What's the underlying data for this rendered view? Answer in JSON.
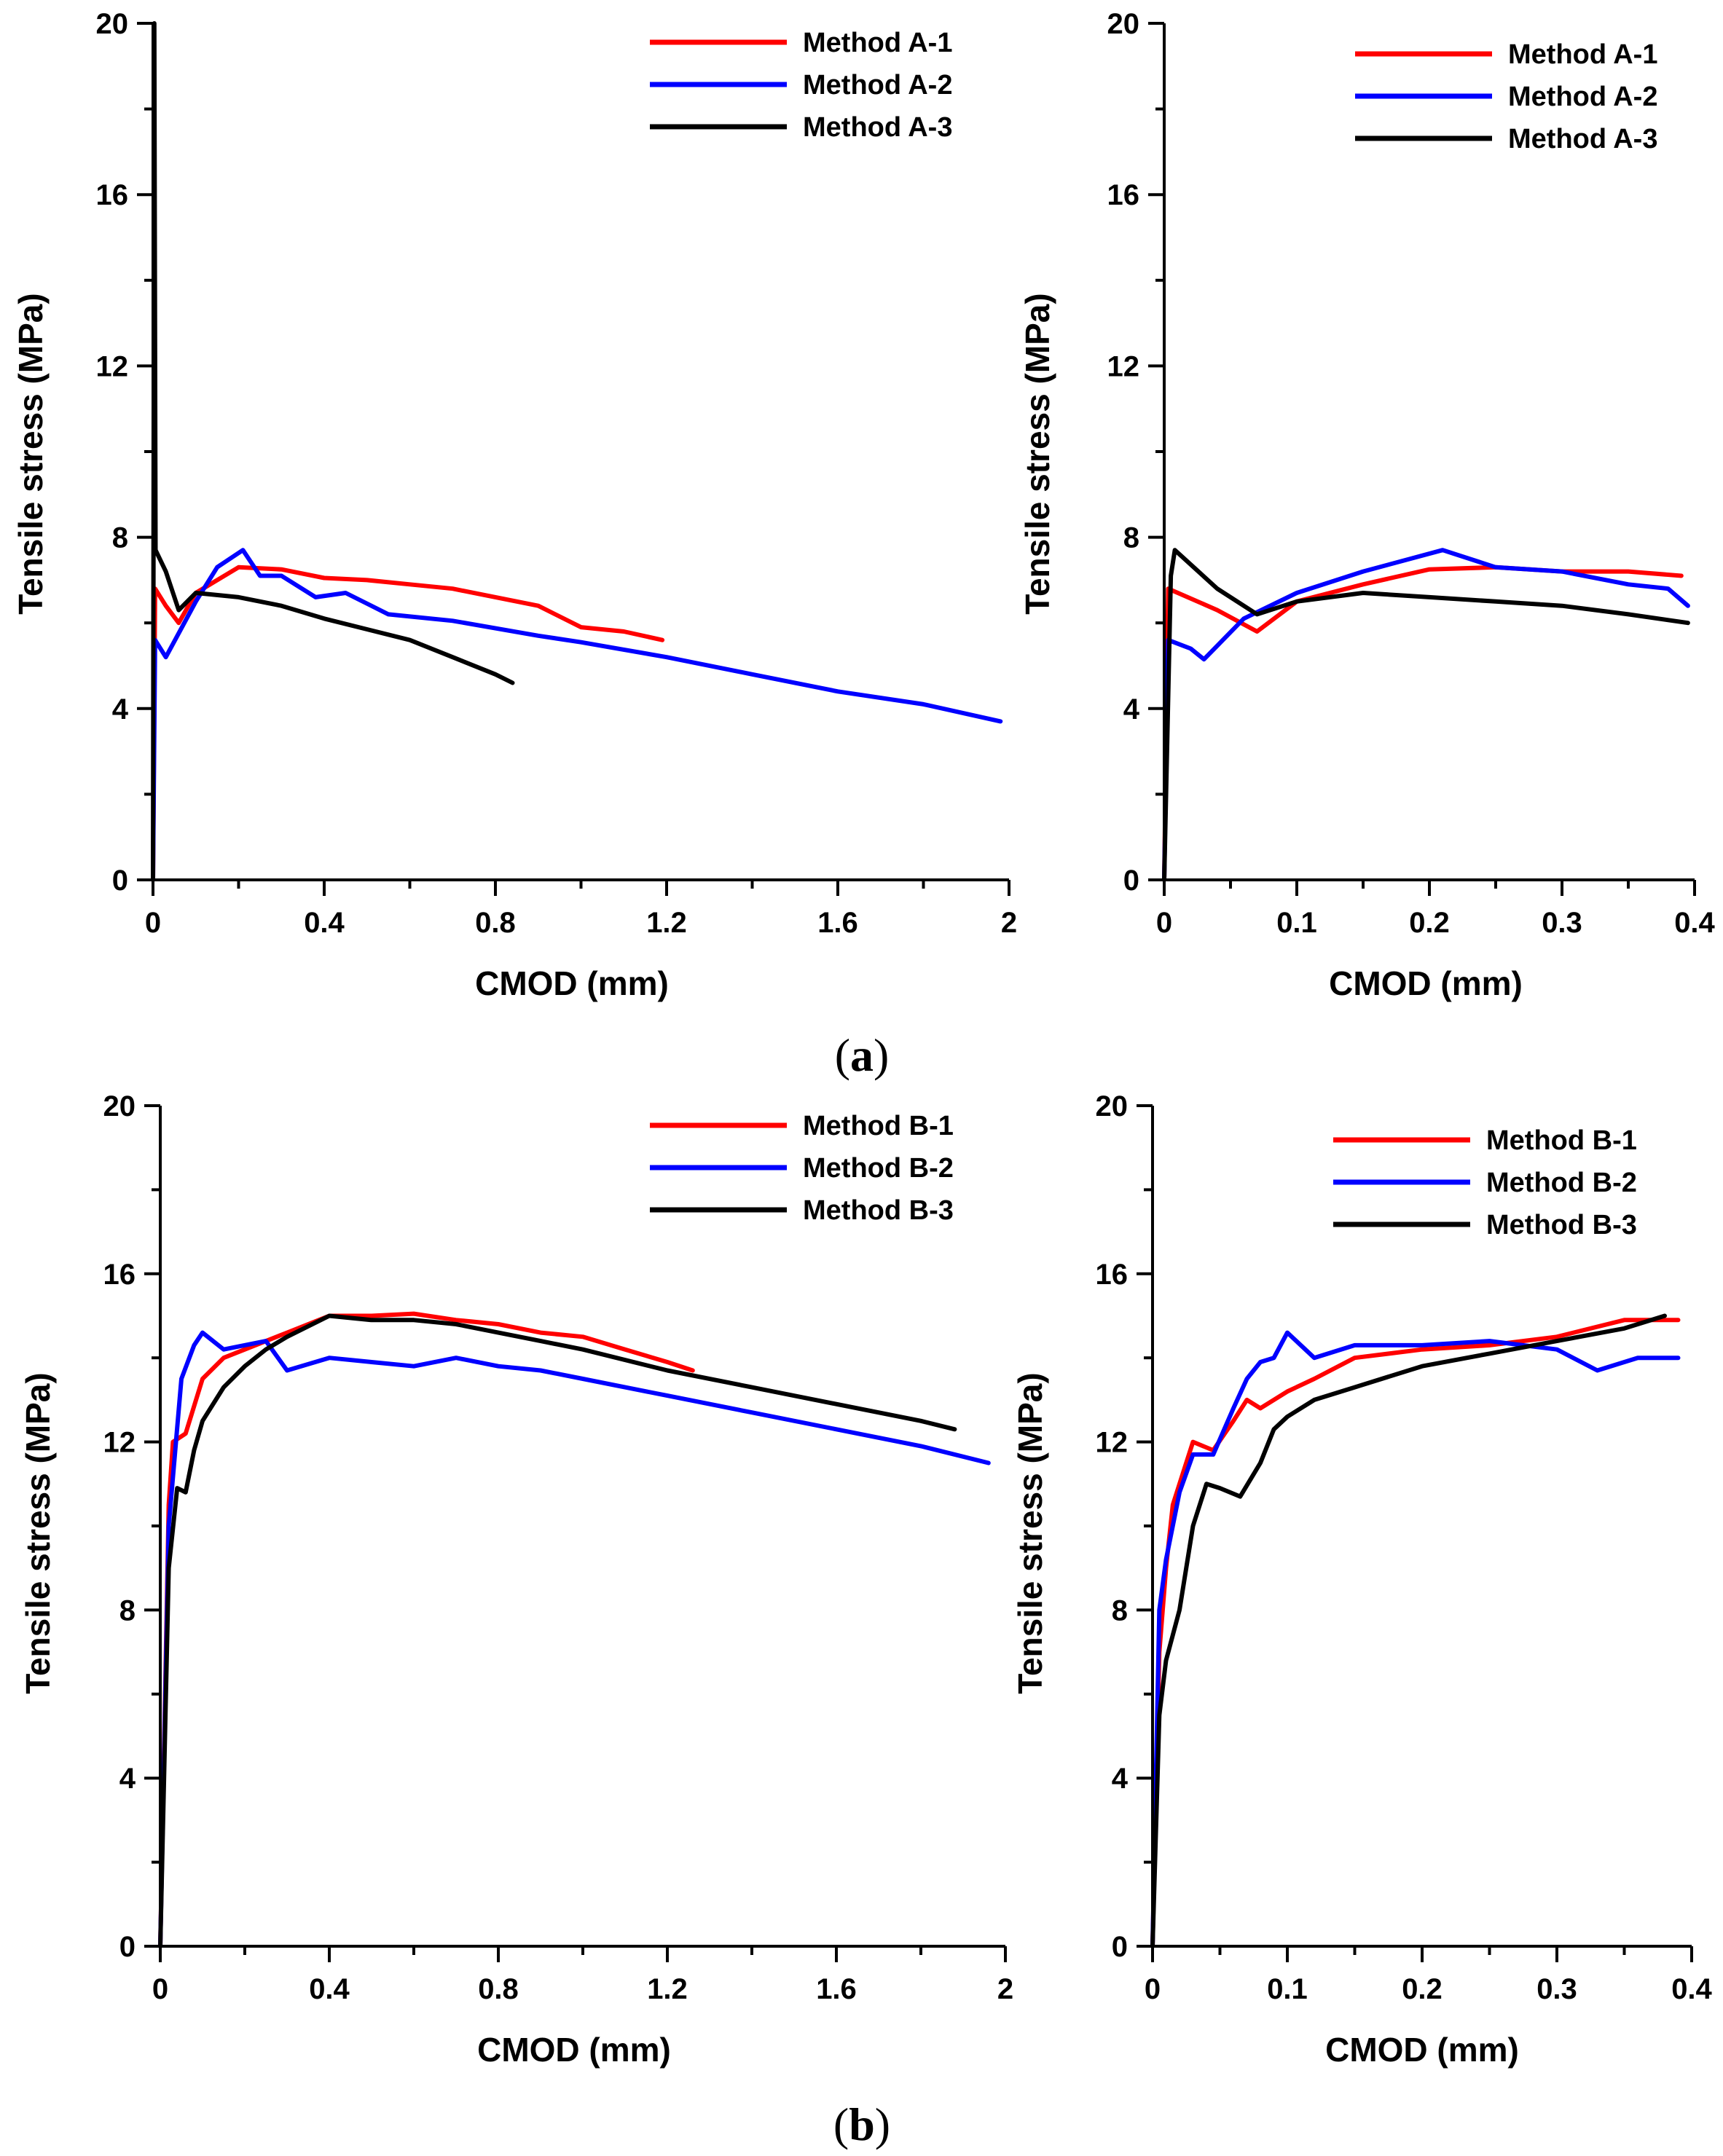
{
  "figure": {
    "panel_labels": [
      {
        "open": "(",
        "letter": "a",
        "close": ")"
      },
      {
        "open": "(",
        "letter": "b",
        "close": ")"
      }
    ]
  },
  "chart_data": [
    {
      "type": "line",
      "title": "",
      "xlabel": "CMOD (mm)",
      "ylabel": "Tensile stress (MPa)",
      "xlim": [
        0,
        2
      ],
      "ylim": [
        0,
        20
      ],
      "xticks": [
        0,
        0.4,
        0.8,
        1.2,
        1.6,
        2
      ],
      "xtick_labels": [
        "0",
        "0.4",
        "0.8",
        "1.2",
        "1.6",
        "2"
      ],
      "yticks": [
        0,
        4,
        8,
        12,
        16,
        20
      ],
      "ytick_labels": [
        "0",
        "4",
        "8",
        "12",
        "16",
        "20"
      ],
      "legend_position": "top-right",
      "series": [
        {
          "name": "Method A-1",
          "color": "#ff0000",
          "points": [
            [
              0,
              0
            ],
            [
              0.005,
              6.8
            ],
            [
              0.03,
              6.4
            ],
            [
              0.06,
              6.0
            ],
            [
              0.1,
              6.7
            ],
            [
              0.2,
              7.3
            ],
            [
              0.3,
              7.25
            ],
            [
              0.4,
              7.05
            ],
            [
              0.5,
              7.0
            ],
            [
              0.6,
              6.9
            ],
            [
              0.7,
              6.8
            ],
            [
              0.8,
              6.6
            ],
            [
              0.9,
              6.4
            ],
            [
              1.0,
              5.9
            ],
            [
              1.1,
              5.8
            ],
            [
              1.19,
              5.6
            ]
          ]
        },
        {
          "name": "Method A-2",
          "color": "#0000ff",
          "points": [
            [
              0,
              0
            ],
            [
              0.005,
              5.6
            ],
            [
              0.03,
              5.2
            ],
            [
              0.1,
              6.5
            ],
            [
              0.15,
              7.3
            ],
            [
              0.21,
              7.7
            ],
            [
              0.25,
              7.1
            ],
            [
              0.3,
              7.1
            ],
            [
              0.38,
              6.6
            ],
            [
              0.45,
              6.7
            ],
            [
              0.55,
              6.2
            ],
            [
              0.7,
              6.05
            ],
            [
              0.9,
              5.7
            ],
            [
              1.0,
              5.55
            ],
            [
              1.2,
              5.2
            ],
            [
              1.4,
              4.8
            ],
            [
              1.6,
              4.4
            ],
            [
              1.8,
              4.1
            ],
            [
              1.98,
              3.7
            ]
          ]
        },
        {
          "name": "Method A-3",
          "color": "#000000",
          "points": [
            [
              0,
              0
            ],
            [
              0.003,
              20
            ],
            [
              0.006,
              7.7
            ],
            [
              0.03,
              7.2
            ],
            [
              0.06,
              6.3
            ],
            [
              0.1,
              6.7
            ],
            [
              0.2,
              6.6
            ],
            [
              0.3,
              6.4
            ],
            [
              0.4,
              6.1
            ],
            [
              0.5,
              5.85
            ],
            [
              0.6,
              5.6
            ],
            [
              0.7,
              5.2
            ],
            [
              0.8,
              4.8
            ],
            [
              0.84,
              4.6
            ]
          ]
        }
      ]
    },
    {
      "type": "line",
      "title": "",
      "xlabel": "CMOD (mm)",
      "ylabel": "Tensile stress (MPa)",
      "xlim": [
        0,
        0.4
      ],
      "ylim": [
        0,
        20
      ],
      "xticks": [
        0,
        0.1,
        0.2,
        0.3,
        0.4
      ],
      "xtick_labels": [
        "0",
        "0.1",
        "0.2",
        "0.3",
        "0.4"
      ],
      "yticks": [
        0,
        4,
        8,
        12,
        16,
        20
      ],
      "ytick_labels": [
        "0",
        "4",
        "8",
        "12",
        "16",
        "20"
      ],
      "legend_position": "top-right",
      "series": [
        {
          "name": "Method A-1",
          "color": "#ff0000",
          "points": [
            [
              0,
              0
            ],
            [
              0.003,
              6.8
            ],
            [
              0.04,
              6.3
            ],
            [
              0.07,
              5.8
            ],
            [
              0.1,
              6.5
            ],
            [
              0.15,
              6.9
            ],
            [
              0.2,
              7.25
            ],
            [
              0.25,
              7.3
            ],
            [
              0.3,
              7.2
            ],
            [
              0.35,
              7.2
            ],
            [
              0.39,
              7.1
            ]
          ]
        },
        {
          "name": "Method A-2",
          "color": "#0000ff",
          "points": [
            [
              0,
              0
            ],
            [
              0.003,
              5.6
            ],
            [
              0.02,
              5.4
            ],
            [
              0.03,
              5.15
            ],
            [
              0.06,
              6.1
            ],
            [
              0.1,
              6.7
            ],
            [
              0.15,
              7.2
            ],
            [
              0.21,
              7.7
            ],
            [
              0.25,
              7.3
            ],
            [
              0.3,
              7.2
            ],
            [
              0.35,
              6.9
            ],
            [
              0.38,
              6.8
            ],
            [
              0.395,
              6.4
            ]
          ]
        },
        {
          "name": "Method A-3",
          "color": "#000000",
          "points": [
            [
              0,
              0
            ],
            [
              0.005,
              7.1
            ],
            [
              0.008,
              7.7
            ],
            [
              0.04,
              6.8
            ],
            [
              0.07,
              6.2
            ],
            [
              0.1,
              6.5
            ],
            [
              0.15,
              6.7
            ],
            [
              0.2,
              6.6
            ],
            [
              0.25,
              6.5
            ],
            [
              0.3,
              6.4
            ],
            [
              0.35,
              6.2
            ],
            [
              0.395,
              6.0
            ]
          ]
        }
      ]
    },
    {
      "type": "line",
      "title": "",
      "xlabel": "CMOD (mm)",
      "ylabel": "Tensile stress (MPa)",
      "xlim": [
        0,
        2
      ],
      "ylim": [
        0,
        20
      ],
      "xticks": [
        0,
        0.4,
        0.8,
        1.2,
        1.6,
        2
      ],
      "xtick_labels": [
        "0",
        "0.4",
        "0.8",
        "1.2",
        "1.6",
        "2"
      ],
      "yticks": [
        0,
        4,
        8,
        12,
        16,
        20
      ],
      "ytick_labels": [
        "0",
        "4",
        "8",
        "12",
        "16",
        "20"
      ],
      "legend_position": "top-right",
      "series": [
        {
          "name": "Method B-1",
          "color": "#ff0000",
          "points": [
            [
              0,
              0
            ],
            [
              0.02,
              10.5
            ],
            [
              0.03,
              12.0
            ],
            [
              0.06,
              12.2
            ],
            [
              0.1,
              13.5
            ],
            [
              0.15,
              14.0
            ],
            [
              0.2,
              14.2
            ],
            [
              0.3,
              14.6
            ],
            [
              0.4,
              15.0
            ],
            [
              0.5,
              15.0
            ],
            [
              0.6,
              15.05
            ],
            [
              0.7,
              14.9
            ],
            [
              0.8,
              14.8
            ],
            [
              0.9,
              14.6
            ],
            [
              1.0,
              14.5
            ],
            [
              1.1,
              14.2
            ],
            [
              1.2,
              13.9
            ],
            [
              1.26,
              13.7
            ]
          ]
        },
        {
          "name": "Method B-2",
          "color": "#0000ff",
          "points": [
            [
              0,
              0
            ],
            [
              0.02,
              10.0
            ],
            [
              0.05,
              13.5
            ],
            [
              0.08,
              14.3
            ],
            [
              0.1,
              14.6
            ],
            [
              0.15,
              14.2
            ],
            [
              0.25,
              14.4
            ],
            [
              0.3,
              13.7
            ],
            [
              0.4,
              14.0
            ],
            [
              0.5,
              13.9
            ],
            [
              0.6,
              13.8
            ],
            [
              0.7,
              14.0
            ],
            [
              0.8,
              13.8
            ],
            [
              0.9,
              13.7
            ],
            [
              1.0,
              13.5
            ],
            [
              1.1,
              13.3
            ],
            [
              1.2,
              13.1
            ],
            [
              1.4,
              12.7
            ],
            [
              1.6,
              12.3
            ],
            [
              1.8,
              11.9
            ],
            [
              1.96,
              11.5
            ]
          ]
        },
        {
          "name": "Method B-3",
          "color": "#000000",
          "points": [
            [
              0,
              0
            ],
            [
              0.02,
              9.0
            ],
            [
              0.04,
              10.9
            ],
            [
              0.06,
              10.8
            ],
            [
              0.08,
              11.8
            ],
            [
              0.1,
              12.5
            ],
            [
              0.15,
              13.3
            ],
            [
              0.2,
              13.8
            ],
            [
              0.25,
              14.2
            ],
            [
              0.3,
              14.5
            ],
            [
              0.4,
              15.0
            ],
            [
              0.5,
              14.9
            ],
            [
              0.6,
              14.9
            ],
            [
              0.7,
              14.8
            ],
            [
              0.8,
              14.6
            ],
            [
              0.9,
              14.4
            ],
            [
              1.0,
              14.2
            ],
            [
              1.2,
              13.7
            ],
            [
              1.4,
              13.3
            ],
            [
              1.6,
              12.9
            ],
            [
              1.8,
              12.5
            ],
            [
              1.88,
              12.3
            ]
          ]
        }
      ]
    },
    {
      "type": "line",
      "title": "",
      "xlabel": "CMOD (mm)",
      "ylabel": "Tensile stress (MPa)",
      "xlim": [
        0,
        0.4
      ],
      "ylim": [
        0,
        20
      ],
      "xticks": [
        0,
        0.1,
        0.2,
        0.3,
        0.4
      ],
      "xtick_labels": [
        "0",
        "0.1",
        "0.2",
        "0.3",
        "0.4"
      ],
      "yticks": [
        0,
        4,
        8,
        12,
        16,
        20
      ],
      "ytick_labels": [
        "0",
        "4",
        "8",
        "12",
        "16",
        "20"
      ],
      "legend_position": "top-right",
      "series": [
        {
          "name": "Method B-1",
          "color": "#ff0000",
          "points": [
            [
              0,
              0
            ],
            [
              0.005,
              7.0
            ],
            [
              0.01,
              9.0
            ],
            [
              0.015,
              10.5
            ],
            [
              0.02,
              11.0
            ],
            [
              0.03,
              12.0
            ],
            [
              0.045,
              11.8
            ],
            [
              0.06,
              12.5
            ],
            [
              0.07,
              13.0
            ],
            [
              0.08,
              12.8
            ],
            [
              0.1,
              13.2
            ],
            [
              0.12,
              13.5
            ],
            [
              0.15,
              14.0
            ],
            [
              0.2,
              14.2
            ],
            [
              0.25,
              14.3
            ],
            [
              0.3,
              14.5
            ],
            [
              0.35,
              14.9
            ],
            [
              0.39,
              14.9
            ]
          ]
        },
        {
          "name": "Method B-2",
          "color": "#0000ff",
          "points": [
            [
              0,
              0
            ],
            [
              0.005,
              8.0
            ],
            [
              0.01,
              9.2
            ],
            [
              0.02,
              10.8
            ],
            [
              0.03,
              11.7
            ],
            [
              0.045,
              11.7
            ],
            [
              0.06,
              12.8
            ],
            [
              0.07,
              13.5
            ],
            [
              0.08,
              13.9
            ],
            [
              0.09,
              14.0
            ],
            [
              0.1,
              14.6
            ],
            [
              0.12,
              14.0
            ],
            [
              0.15,
              14.3
            ],
            [
              0.2,
              14.3
            ],
            [
              0.25,
              14.4
            ],
            [
              0.3,
              14.2
            ],
            [
              0.33,
              13.7
            ],
            [
              0.36,
              14.0
            ],
            [
              0.39,
              14.0
            ]
          ]
        },
        {
          "name": "Method B-3",
          "color": "#000000",
          "points": [
            [
              0,
              0
            ],
            [
              0.005,
              5.5
            ],
            [
              0.01,
              6.8
            ],
            [
              0.02,
              8.0
            ],
            [
              0.03,
              10.0
            ],
            [
              0.04,
              11.0
            ],
            [
              0.05,
              10.9
            ],
            [
              0.065,
              10.7
            ],
            [
              0.08,
              11.5
            ],
            [
              0.09,
              12.3
            ],
            [
              0.1,
              12.6
            ],
            [
              0.12,
              13.0
            ],
            [
              0.15,
              13.3
            ],
            [
              0.2,
              13.8
            ],
            [
              0.25,
              14.1
            ],
            [
              0.3,
              14.4
            ],
            [
              0.35,
              14.7
            ],
            [
              0.38,
              15.0
            ]
          ]
        }
      ]
    }
  ]
}
